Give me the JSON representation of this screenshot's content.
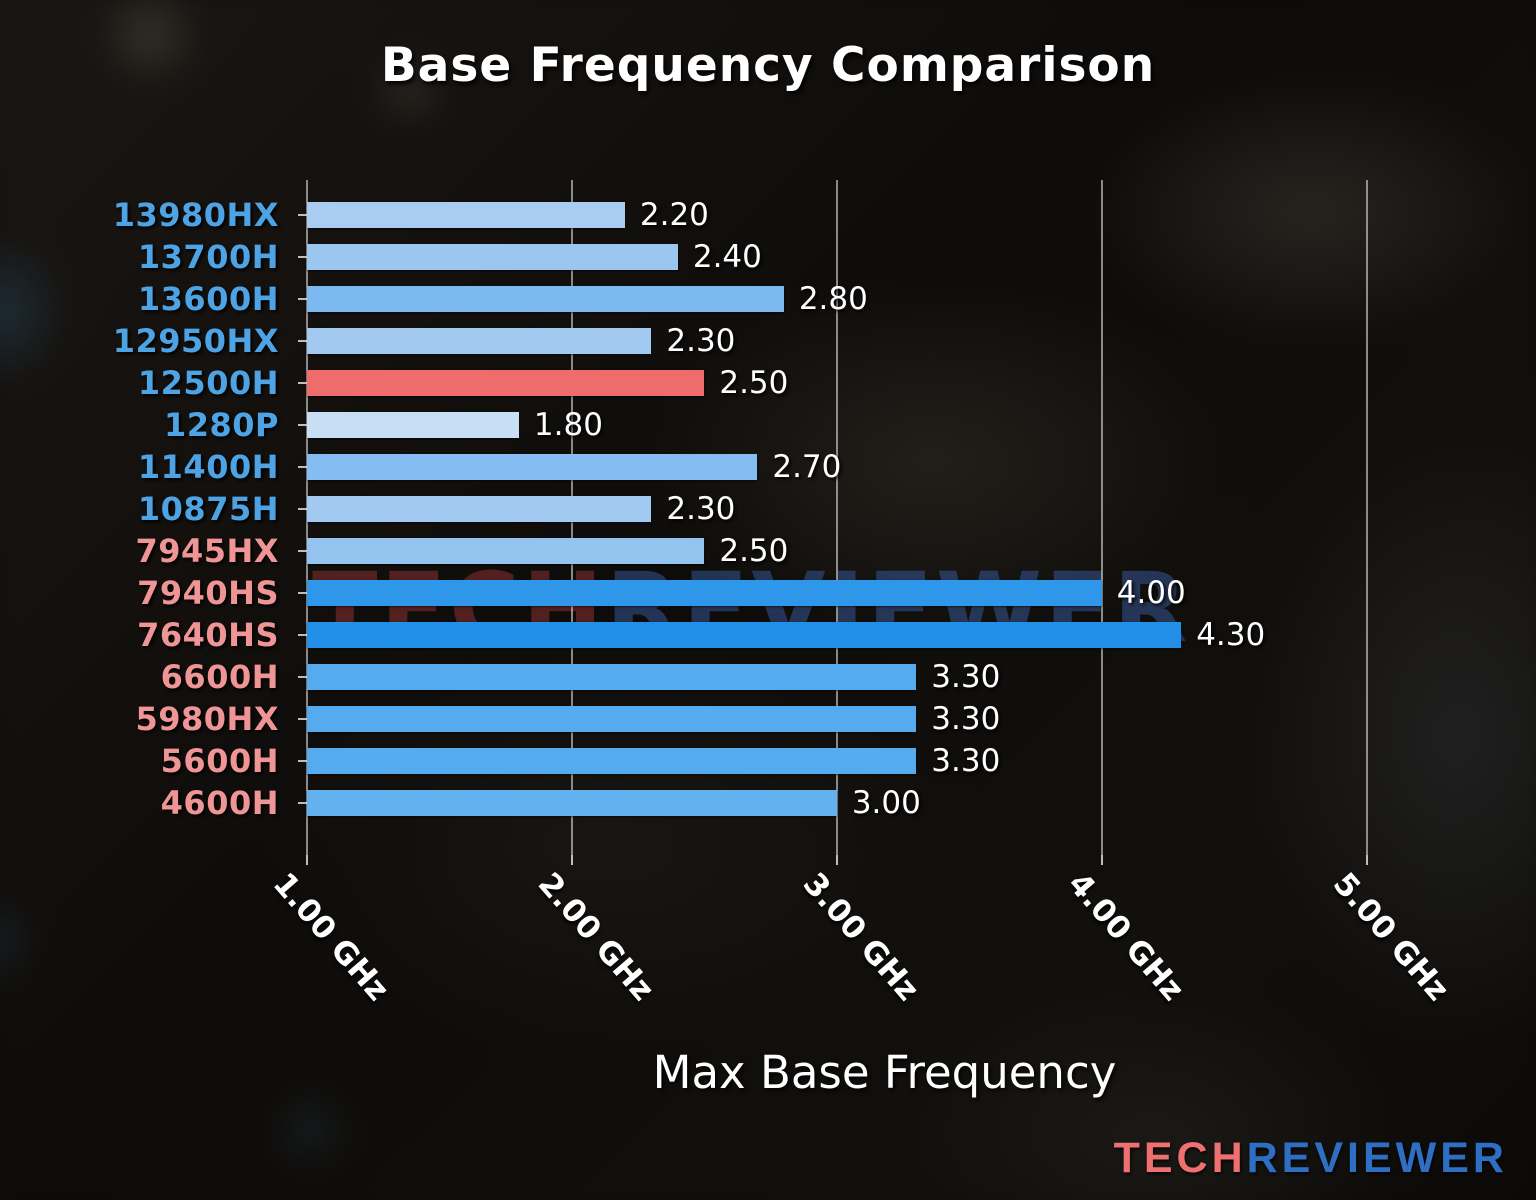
{
  "title": "Base Frequency Comparison",
  "xlabel": "Max Base Frequency",
  "watermark": {
    "part1": "TECH",
    "part2": "REVIEWER"
  },
  "logo": {
    "part1": "TECH",
    "part2": "REVIEWER"
  },
  "colors": {
    "intel_label": "#4da3e3",
    "amd_label": "#ef9595",
    "highlight_bar": "#ee6c6c",
    "gridline": "rgba(215,215,215,0.62)",
    "text": "#ffffff"
  },
  "chart_data": {
    "type": "bar",
    "orientation": "horizontal",
    "title": "Base Frequency Comparison",
    "xlabel": "Max Base Frequency",
    "unit": "GHz",
    "xlim": [
      1.0,
      5.36
    ],
    "xtick_values": [
      1.0,
      2.0,
      3.0,
      4.0,
      5.0
    ],
    "xtick_labels": [
      "1.00 GHz",
      "2.00 GHz",
      "3.00 GHz",
      "4.00 GHz",
      "5.00 GHz"
    ],
    "grid": true,
    "legend": false,
    "categories": [
      "13980HX",
      "13700H",
      "13600H",
      "12950HX",
      "12500H",
      "1280P",
      "11400H",
      "10875H",
      "7945HX",
      "7940HS",
      "7640HS",
      "6600H",
      "5980HX",
      "5600H",
      "4600H"
    ],
    "values": [
      2.2,
      2.4,
      2.8,
      2.3,
      2.5,
      1.8,
      2.7,
      2.3,
      2.5,
      4.0,
      4.3,
      3.3,
      3.3,
      3.3,
      3.0
    ],
    "bars": [
      {
        "label": "13980HX",
        "brand": "intel",
        "value": 2.2,
        "display": "2.20",
        "bar_color": "#a9cdf1"
      },
      {
        "label": "13700H",
        "brand": "intel",
        "value": 2.4,
        "display": "2.40",
        "bar_color": "#9bc6f0"
      },
      {
        "label": "13600H",
        "brand": "intel",
        "value": 2.8,
        "display": "2.80",
        "bar_color": "#7db9f1"
      },
      {
        "label": "12950HX",
        "brand": "intel",
        "value": 2.3,
        "display": "2.30",
        "bar_color": "#a2c9f0"
      },
      {
        "label": "12500H",
        "brand": "intel",
        "value": 2.5,
        "display": "2.50",
        "bar_color": "#ee6c6c"
      },
      {
        "label": "1280P",
        "brand": "intel",
        "value": 1.8,
        "display": "1.80",
        "bar_color": "#c8def5"
      },
      {
        "label": "11400H",
        "brand": "intel",
        "value": 2.7,
        "display": "2.70",
        "bar_color": "#85bcf1"
      },
      {
        "label": "10875H",
        "brand": "intel",
        "value": 2.3,
        "display": "2.30",
        "bar_color": "#a2c9f0"
      },
      {
        "label": "7945HX",
        "brand": "amd",
        "value": 2.5,
        "display": "2.50",
        "bar_color": "#94c3f0"
      },
      {
        "label": "7940HS",
        "brand": "amd",
        "value": 4.0,
        "display": "4.00",
        "bar_color": "#2f97ea"
      },
      {
        "label": "7640HS",
        "brand": "amd",
        "value": 4.3,
        "display": "4.30",
        "bar_color": "#2290e9"
      },
      {
        "label": "6600H",
        "brand": "amd",
        "value": 3.3,
        "display": "3.30",
        "bar_color": "#55abee"
      },
      {
        "label": "5980HX",
        "brand": "amd",
        "value": 3.3,
        "display": "3.30",
        "bar_color": "#55abee"
      },
      {
        "label": "5600H",
        "brand": "amd",
        "value": 3.3,
        "display": "3.30",
        "bar_color": "#55abee"
      },
      {
        "label": "4600H",
        "brand": "amd",
        "value": 3.0,
        "display": "3.00",
        "bar_color": "#63b1ef"
      }
    ]
  }
}
